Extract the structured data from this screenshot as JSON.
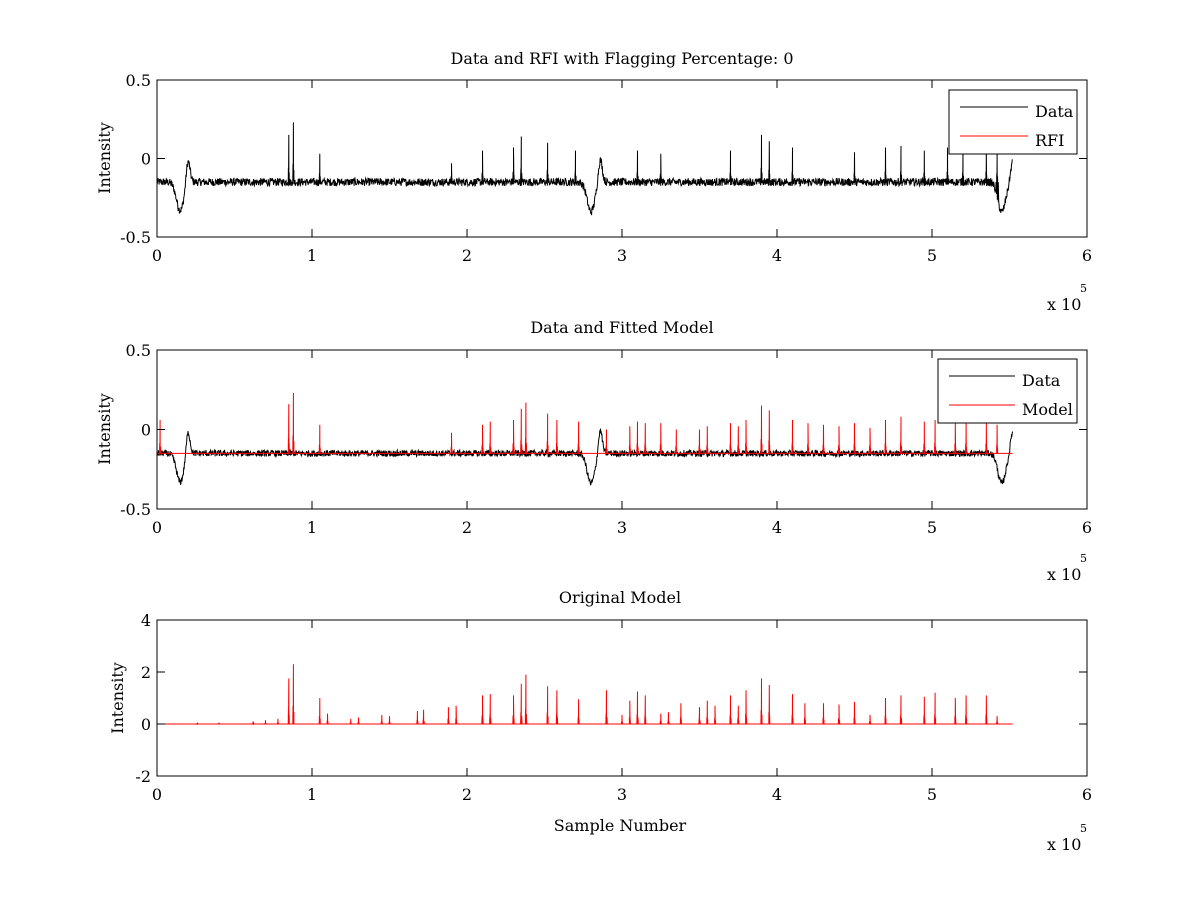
{
  "chart_data": [
    {
      "type": "line",
      "title": "Data and RFI with Flagging Percentage: 0",
      "xlabel": "",
      "ylabel": "Intensity",
      "xlim": [
        0,
        600000
      ],
      "ylim": [
        -0.5,
        0.5
      ],
      "xticks": [
        0,
        1,
        2,
        3,
        4,
        5,
        6
      ],
      "xtick_labels": [
        "0",
        "1",
        "2",
        "3",
        "4",
        "5",
        "6"
      ],
      "yticks": [
        -0.5,
        0,
        0.5
      ],
      "ytick_labels": [
        "-0.5",
        "0",
        "0.5"
      ],
      "exponent_label": "x 10",
      "exponent_power": "5",
      "grid": false,
      "legend": {
        "placement": "top-right",
        "entries": [
          "Data",
          "RFI"
        ]
      },
      "series": [
        {
          "name": "Data",
          "color": "#000000",
          "baseline": -0.15,
          "noise": 0.025,
          "x_end": 552000,
          "dips": [
            [
              15000,
              -0.33
            ],
            [
              280000,
              -0.34
            ],
            [
              545000,
              -0.34
            ]
          ],
          "bumps": [
            [
              20000,
              0.0
            ],
            [
              286000,
              0.0
            ],
            [
              552000,
              -0.02
            ]
          ],
          "spikes": [
            [
              85000,
              0.15
            ],
            [
              88000,
              0.23
            ],
            [
              105000,
              0.03
            ],
            [
              190000,
              -0.03
            ],
            [
              210000,
              0.05
            ],
            [
              230000,
              0.07
            ],
            [
              235000,
              0.14
            ],
            [
              252000,
              0.1
            ],
            [
              270000,
              0.05
            ],
            [
              310000,
              0.05
            ],
            [
              325000,
              0.03
            ],
            [
              370000,
              0.05
            ],
            [
              390000,
              0.15
            ],
            [
              395000,
              0.11
            ],
            [
              410000,
              0.07
            ],
            [
              450000,
              0.04
            ],
            [
              470000,
              0.07
            ],
            [
              480000,
              0.08
            ],
            [
              495000,
              0.05
            ],
            [
              510000,
              0.07
            ],
            [
              520000,
              0.05
            ],
            [
              535000,
              0.07
            ],
            [
              542000,
              0.03
            ]
          ]
        },
        {
          "name": "RFI",
          "color": "#ff0000",
          "values": []
        }
      ]
    },
    {
      "type": "line",
      "title": "Data and Fitted Model",
      "xlabel": "",
      "ylabel": "Intensity",
      "xlim": [
        0,
        600000
      ],
      "ylim": [
        -0.5,
        0.5
      ],
      "xticks": [
        0,
        1,
        2,
        3,
        4,
        5,
        6
      ],
      "xtick_labels": [
        "0",
        "1",
        "2",
        "3",
        "4",
        "5",
        "6"
      ],
      "yticks": [
        -0.5,
        0,
        0.5
      ],
      "ytick_labels": [
        "-0.5",
        "0",
        "0.5"
      ],
      "exponent_label": "x 10",
      "exponent_power": "5",
      "grid": false,
      "legend": {
        "placement": "top-right",
        "entries": [
          "Data",
          "Model"
        ]
      },
      "series": [
        {
          "name": "Data",
          "color": "#000000",
          "baseline": -0.15,
          "noise": 0.02,
          "x_end": 552000,
          "dips": [
            [
              15000,
              -0.33
            ],
            [
              280000,
              -0.34
            ],
            [
              545000,
              -0.34
            ]
          ],
          "bumps": [
            [
              20000,
              0.0
            ],
            [
              286000,
              0.0
            ],
            [
              552000,
              -0.01
            ]
          ],
          "spikes": []
        },
        {
          "name": "Model",
          "color": "#ff0000",
          "baseline": -0.15,
          "x_end": 552000,
          "spikes": [
            [
              2000,
              0.06
            ],
            [
              85000,
              0.16
            ],
            [
              88000,
              0.23
            ],
            [
              105000,
              0.03
            ],
            [
              190000,
              -0.02
            ],
            [
              210000,
              0.03
            ],
            [
              215000,
              0.05
            ],
            [
              230000,
              0.06
            ],
            [
              235000,
              0.13
            ],
            [
              238000,
              0.17
            ],
            [
              252000,
              0.1
            ],
            [
              258000,
              0.06
            ],
            [
              272000,
              0.05
            ],
            [
              290000,
              0.0
            ],
            [
              305000,
              0.02
            ],
            [
              310000,
              0.05
            ],
            [
              315000,
              0.04
            ],
            [
              325000,
              0.04
            ],
            [
              335000,
              0.0
            ],
            [
              350000,
              0.0
            ],
            [
              355000,
              0.02
            ],
            [
              370000,
              0.04
            ],
            [
              375000,
              0.02
            ],
            [
              380000,
              0.06
            ],
            [
              390000,
              0.15
            ],
            [
              395000,
              0.12
            ],
            [
              410000,
              0.06
            ],
            [
              420000,
              0.04
            ],
            [
              430000,
              0.03
            ],
            [
              440000,
              0.02
            ],
            [
              450000,
              0.04
            ],
            [
              460000,
              0.01
            ],
            [
              470000,
              0.06
            ],
            [
              480000,
              0.08
            ],
            [
              495000,
              0.05
            ],
            [
              502000,
              0.06
            ],
            [
              515000,
              0.05
            ],
            [
              522000,
              0.05
            ],
            [
              535000,
              0.05
            ],
            [
              542000,
              0.03
            ]
          ]
        }
      ]
    },
    {
      "type": "line",
      "title": "Original Model",
      "xlabel": "Sample Number",
      "ylabel": "Intensity",
      "xlim": [
        0,
        600000
      ],
      "ylim": [
        -2,
        4
      ],
      "xticks": [
        0,
        1,
        2,
        3,
        4,
        5,
        6
      ],
      "xtick_labels": [
        "0",
        "1",
        "2",
        "3",
        "4",
        "5",
        "6"
      ],
      "yticks": [
        -2,
        0,
        2,
        4
      ],
      "ytick_labels": [
        "-2",
        "0",
        "2",
        "4"
      ],
      "exponent_label": "x 10",
      "exponent_power": "5",
      "grid": false,
      "legend": null,
      "series": [
        {
          "name": "Model",
          "color": "#ff0000",
          "baseline": 0.0,
          "x_end": 552000,
          "spikes": [
            [
              26000,
              0.05
            ],
            [
              40000,
              0.05
            ],
            [
              62000,
              0.1
            ],
            [
              70000,
              0.15
            ],
            [
              78000,
              0.2
            ],
            [
              85000,
              1.75
            ],
            [
              88000,
              2.3
            ],
            [
              105000,
              1.0
            ],
            [
              110000,
              0.4
            ],
            [
              125000,
              0.2
            ],
            [
              130000,
              0.25
            ],
            [
              145000,
              0.35
            ],
            [
              150000,
              0.3
            ],
            [
              168000,
              0.5
            ],
            [
              172000,
              0.55
            ],
            [
              188000,
              0.65
            ],
            [
              193000,
              0.7
            ],
            [
              210000,
              1.1
            ],
            [
              215000,
              1.15
            ],
            [
              230000,
              1.1
            ],
            [
              235000,
              1.55
            ],
            [
              238000,
              1.9
            ],
            [
              252000,
              1.45
            ],
            [
              258000,
              1.3
            ],
            [
              272000,
              0.95
            ],
            [
              290000,
              1.3
            ],
            [
              300000,
              0.35
            ],
            [
              305000,
              0.9
            ],
            [
              310000,
              1.25
            ],
            [
              315000,
              1.1
            ],
            [
              325000,
              0.4
            ],
            [
              330000,
              0.45
            ],
            [
              338000,
              0.8
            ],
            [
              350000,
              0.65
            ],
            [
              355000,
              0.9
            ],
            [
              360000,
              0.7
            ],
            [
              370000,
              1.1
            ],
            [
              375000,
              0.7
            ],
            [
              380000,
              1.3
            ],
            [
              390000,
              1.75
            ],
            [
              395000,
              1.5
            ],
            [
              410000,
              1.15
            ],
            [
              418000,
              0.8
            ],
            [
              430000,
              0.8
            ],
            [
              440000,
              0.75
            ],
            [
              450000,
              0.85
            ],
            [
              460000,
              0.35
            ],
            [
              470000,
              1.0
            ],
            [
              480000,
              1.1
            ],
            [
              495000,
              1.05
            ],
            [
              502000,
              1.2
            ],
            [
              515000,
              1.0
            ],
            [
              522000,
              1.1
            ],
            [
              535000,
              1.1
            ],
            [
              542000,
              0.3
            ]
          ]
        }
      ]
    }
  ]
}
